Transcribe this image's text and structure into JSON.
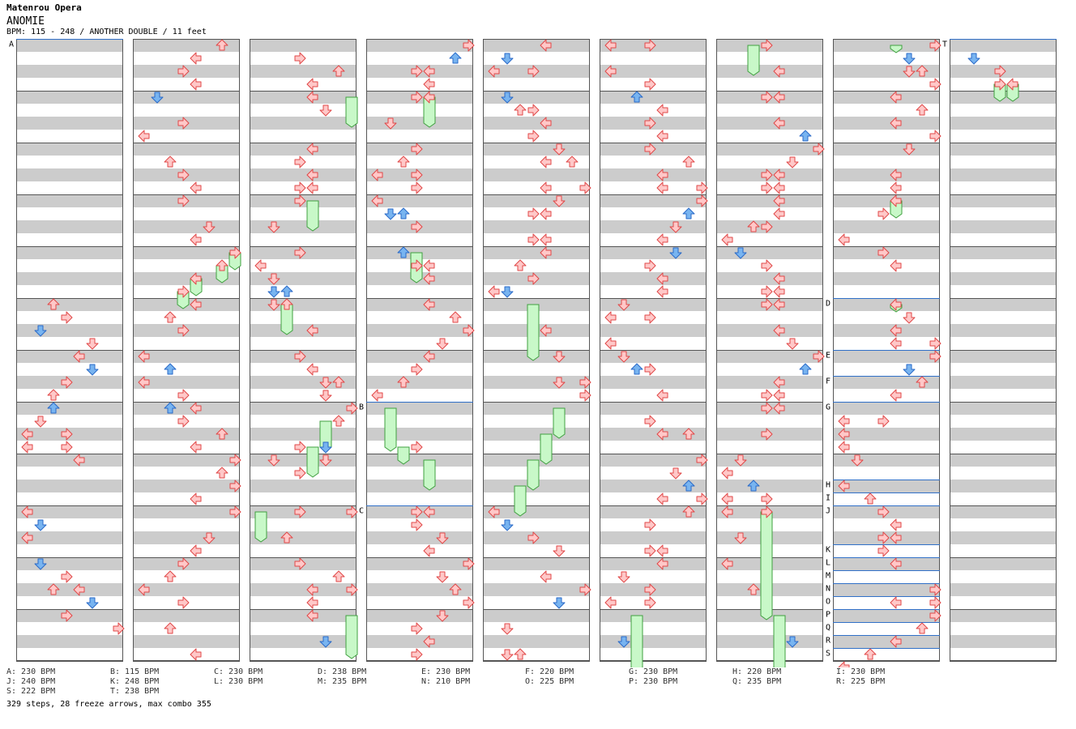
{
  "artist": "Matenrou Opera",
  "title": "ANOMIE",
  "meta": "BPM: 115 - 248 / ANOTHER DOUBLE / 11 feet",
  "colors": {
    "stripe": "#cccccc",
    "border": "#555555",
    "red_arrow": "#ffc8c8",
    "red_stroke": "#e04848",
    "blue_arrow": "#78b4f0",
    "blue_stroke": "#2a6ac8",
    "freeze_fill": "#c8f8c8",
    "freeze_stroke": "#40a040",
    "marker_line": "#3070c8"
  },
  "markers": [
    {
      "label": "A",
      "column": 0,
      "row": 0
    },
    {
      "label": "B",
      "column": 3,
      "row": 28
    },
    {
      "label": "C",
      "column": 3,
      "row": 36
    },
    {
      "label": "D",
      "column": 7,
      "row": 20
    },
    {
      "label": "E",
      "column": 7,
      "row": 24
    },
    {
      "label": "F",
      "column": 7,
      "row": 26
    },
    {
      "label": "G",
      "column": 7,
      "row": 28
    },
    {
      "label": "H",
      "column": 7,
      "row": 34
    },
    {
      "label": "I",
      "column": 7,
      "row": 35
    },
    {
      "label": "J",
      "column": 7,
      "row": 36
    },
    {
      "label": "K",
      "column": 7,
      "row": 39
    },
    {
      "label": "L",
      "column": 7,
      "row": 40
    },
    {
      "label": "M",
      "column": 7,
      "row": 41
    },
    {
      "label": "N",
      "column": 7,
      "row": 42
    },
    {
      "label": "O",
      "column": 7,
      "row": 43
    },
    {
      "label": "P",
      "column": 7,
      "row": 44
    },
    {
      "label": "Q",
      "column": 7,
      "row": 45
    },
    {
      "label": "R",
      "column": 7,
      "row": 46
    },
    {
      "label": "S",
      "column": 7,
      "row": 47
    },
    {
      "label": "T",
      "column": 8,
      "row": 0
    }
  ],
  "bpm_legend": [
    [
      "A: 230 BPM",
      "B: 115 BPM",
      "C: 230 BPM",
      "D: 238 BPM",
      "E: 230 BPM",
      "F: 220 BPM",
      "G: 230 BPM",
      "H: 220 BPM",
      "I: 230 BPM"
    ],
    [
      "J: 240 BPM",
      "K: 248 BPM",
      "L: 230 BPM",
      "M: 235 BPM",
      "N: 210 BPM",
      "O: 225 BPM",
      "P: 230 BPM",
      "Q: 235 BPM",
      "R: 225 BPM"
    ],
    [
      "S: 222 BPM",
      "T: 238 BPM"
    ]
  ],
  "summary": "329 steps, 28 freeze arrows, max combo 355",
  "arrows": [
    [
      0,
      2,
      20
    ],
    [
      0,
      3,
      21
    ],
    [
      0,
      1,
      22
    ],
    [
      0,
      5,
      23
    ],
    [
      0,
      4,
      24
    ],
    [
      0,
      5,
      25
    ],
    [
      0,
      3,
      26
    ],
    [
      0,
      2,
      27
    ],
    [
      0,
      2,
      28
    ],
    [
      0,
      1,
      29
    ],
    [
      0,
      0,
      30
    ],
    [
      0,
      3,
      30
    ],
    [
      0,
      0,
      31
    ],
    [
      0,
      3,
      31
    ],
    [
      0,
      4,
      32
    ],
    [
      0,
      0,
      36
    ],
    [
      0,
      1,
      37
    ],
    [
      0,
      0,
      38
    ],
    [
      0,
      1,
      40
    ],
    [
      0,
      3,
      41
    ],
    [
      0,
      2,
      42
    ],
    [
      0,
      4,
      42
    ],
    [
      0,
      5,
      43
    ],
    [
      0,
      3,
      44
    ],
    [
      0,
      7,
      45
    ],
    [
      1,
      6,
      0
    ],
    [
      1,
      4,
      1
    ],
    [
      1,
      3,
      2
    ],
    [
      1,
      4,
      3
    ],
    [
      1,
      1,
      4
    ],
    [
      1,
      3,
      6
    ],
    [
      1,
      0,
      7
    ],
    [
      1,
      2,
      9
    ],
    [
      1,
      3,
      10
    ],
    [
      1,
      4,
      11
    ],
    [
      1,
      3,
      12
    ],
    [
      1,
      5,
      14
    ],
    [
      1,
      4,
      15
    ],
    [
      1,
      7,
      16
    ],
    [
      1,
      6,
      17
    ],
    [
      1,
      4,
      18
    ],
    [
      1,
      3,
      19
    ],
    [
      1,
      4,
      20
    ],
    [
      1,
      2,
      21
    ],
    [
      1,
      3,
      22
    ],
    [
      1,
      0,
      24
    ],
    [
      1,
      2,
      25
    ],
    [
      1,
      0,
      26
    ],
    [
      1,
      3,
      27
    ],
    [
      1,
      2,
      28
    ],
    [
      1,
      4,
      28
    ],
    [
      1,
      3,
      29
    ],
    [
      1,
      6,
      30
    ],
    [
      1,
      4,
      31
    ],
    [
      1,
      7,
      32
    ],
    [
      1,
      6,
      33
    ],
    [
      1,
      7,
      34
    ],
    [
      1,
      4,
      35
    ],
    [
      1,
      7,
      36
    ],
    [
      1,
      5,
      38
    ],
    [
      1,
      4,
      39
    ],
    [
      1,
      3,
      40
    ],
    [
      1,
      2,
      41
    ],
    [
      1,
      0,
      42
    ],
    [
      1,
      3,
      43
    ],
    [
      1,
      2,
      45
    ],
    [
      1,
      4,
      47
    ],
    [
      2,
      3,
      1
    ],
    [
      2,
      6,
      2
    ],
    [
      2,
      4,
      3
    ],
    [
      2,
      4,
      4
    ],
    [
      2,
      5,
      5
    ],
    [
      2,
      4,
      8
    ],
    [
      2,
      3,
      9
    ],
    [
      2,
      4,
      10
    ],
    [
      2,
      3,
      11
    ],
    [
      2,
      4,
      11
    ],
    [
      2,
      3,
      12
    ],
    [
      2,
      1,
      14
    ],
    [
      2,
      3,
      16
    ],
    [
      2,
      0,
      17
    ],
    [
      2,
      1,
      18
    ],
    [
      2,
      2,
      19
    ],
    [
      2,
      1,
      19
    ],
    [
      2,
      1,
      20
    ],
    [
      2,
      2,
      20
    ],
    [
      2,
      4,
      22
    ],
    [
      2,
      3,
      24
    ],
    [
      2,
      4,
      25
    ],
    [
      2,
      5,
      26
    ],
    [
      2,
      6,
      26
    ],
    [
      2,
      5,
      27
    ],
    [
      2,
      7,
      28
    ],
    [
      2,
      6,
      29
    ],
    [
      2,
      3,
      31
    ],
    [
      2,
      5,
      31
    ],
    [
      2,
      1,
      32
    ],
    [
      2,
      5,
      32
    ],
    [
      2,
      3,
      33
    ],
    [
      2,
      7,
      36
    ],
    [
      2,
      3,
      36
    ],
    [
      2,
      2,
      38
    ],
    [
      2,
      3,
      40
    ],
    [
      2,
      6,
      41
    ],
    [
      2,
      4,
      42
    ],
    [
      2,
      7,
      42
    ],
    [
      2,
      4,
      43
    ],
    [
      2,
      4,
      44
    ],
    [
      2,
      5,
      46
    ],
    [
      3,
      7,
      0
    ],
    [
      3,
      6,
      1
    ],
    [
      3,
      3,
      2
    ],
    [
      3,
      4,
      2
    ],
    [
      3,
      4,
      3
    ],
    [
      3,
      3,
      4
    ],
    [
      3,
      4,
      4
    ],
    [
      3,
      1,
      6
    ],
    [
      3,
      3,
      8
    ],
    [
      3,
      2,
      9
    ],
    [
      3,
      0,
      10
    ],
    [
      3,
      3,
      10
    ],
    [
      3,
      3,
      11
    ],
    [
      3,
      0,
      12
    ],
    [
      3,
      1,
      13
    ],
    [
      3,
      2,
      13
    ],
    [
      3,
      3,
      14
    ],
    [
      3,
      2,
      16
    ],
    [
      3,
      3,
      17
    ],
    [
      3,
      4,
      17
    ],
    [
      3,
      4,
      18
    ],
    [
      3,
      4,
      20
    ],
    [
      3,
      6,
      21
    ],
    [
      3,
      7,
      22
    ],
    [
      3,
      5,
      23
    ],
    [
      3,
      4,
      24
    ],
    [
      3,
      3,
      25
    ],
    [
      3,
      2,
      26
    ],
    [
      3,
      0,
      27
    ],
    [
      3,
      3,
      31
    ],
    [
      3,
      3,
      36
    ],
    [
      3,
      4,
      36
    ],
    [
      3,
      3,
      37
    ],
    [
      3,
      5,
      38
    ],
    [
      3,
      4,
      39
    ],
    [
      3,
      7,
      40
    ],
    [
      3,
      5,
      41
    ],
    [
      3,
      6,
      42
    ],
    [
      3,
      7,
      43
    ],
    [
      3,
      5,
      44
    ],
    [
      3,
      3,
      45
    ],
    [
      3,
      4,
      46
    ],
    [
      3,
      3,
      47
    ],
    [
      4,
      4,
      0
    ],
    [
      4,
      1,
      1
    ],
    [
      4,
      0,
      2
    ],
    [
      4,
      3,
      2
    ],
    [
      4,
      1,
      4
    ],
    [
      4,
      2,
      5
    ],
    [
      4,
      3,
      5
    ],
    [
      4,
      4,
      6
    ],
    [
      4,
      3,
      7
    ],
    [
      4,
      5,
      8
    ],
    [
      4,
      4,
      9
    ],
    [
      4,
      6,
      9
    ],
    [
      4,
      7,
      11
    ],
    [
      4,
      4,
      11
    ],
    [
      4,
      5,
      12
    ],
    [
      4,
      4,
      13
    ],
    [
      4,
      3,
      13
    ],
    [
      4,
      4,
      15
    ],
    [
      4,
      3,
      15
    ],
    [
      4,
      4,
      16
    ],
    [
      4,
      2,
      17
    ],
    [
      4,
      3,
      18
    ],
    [
      4,
      0,
      19
    ],
    [
      4,
      1,
      19
    ],
    [
      4,
      4,
      22
    ],
    [
      4,
      5,
      24
    ],
    [
      4,
      5,
      26
    ],
    [
      4,
      7,
      26
    ],
    [
      4,
      7,
      27
    ],
    [
      4,
      0,
      36
    ],
    [
      4,
      1,
      37
    ],
    [
      4,
      3,
      38
    ],
    [
      4,
      5,
      39
    ],
    [
      4,
      4,
      41
    ],
    [
      4,
      7,
      42
    ],
    [
      4,
      5,
      43
    ],
    [
      4,
      1,
      45
    ],
    [
      4,
      1,
      47
    ],
    [
      4,
      2,
      47
    ],
    [
      5,
      0,
      0
    ],
    [
      5,
      3,
      0
    ],
    [
      5,
      0,
      2
    ],
    [
      5,
      3,
      3
    ],
    [
      5,
      2,
      4
    ],
    [
      5,
      4,
      5
    ],
    [
      5,
      3,
      6
    ],
    [
      5,
      4,
      7
    ],
    [
      5,
      3,
      8
    ],
    [
      5,
      6,
      9
    ],
    [
      5,
      4,
      10
    ],
    [
      5,
      7,
      11
    ],
    [
      5,
      4,
      11
    ],
    [
      5,
      7,
      12
    ],
    [
      5,
      6,
      13
    ],
    [
      5,
      5,
      14
    ],
    [
      5,
      4,
      15
    ],
    [
      5,
      5,
      16
    ],
    [
      5,
      3,
      17
    ],
    [
      5,
      4,
      18
    ],
    [
      5,
      4,
      19
    ],
    [
      5,
      1,
      20
    ],
    [
      5,
      0,
      21
    ],
    [
      5,
      3,
      21
    ],
    [
      5,
      0,
      23
    ],
    [
      5,
      1,
      24
    ],
    [
      5,
      2,
      25
    ],
    [
      5,
      3,
      25
    ],
    [
      5,
      4,
      27
    ],
    [
      5,
      3,
      29
    ],
    [
      5,
      4,
      30
    ],
    [
      5,
      6,
      30
    ],
    [
      5,
      7,
      32
    ],
    [
      5,
      5,
      33
    ],
    [
      5,
      6,
      34
    ],
    [
      5,
      4,
      35
    ],
    [
      5,
      7,
      35
    ],
    [
      5,
      6,
      36
    ],
    [
      5,
      3,
      37
    ],
    [
      5,
      4,
      39
    ],
    [
      5,
      3,
      39
    ],
    [
      5,
      4,
      40
    ],
    [
      5,
      1,
      41
    ],
    [
      5,
      3,
      42
    ],
    [
      5,
      0,
      43
    ],
    [
      5,
      3,
      43
    ],
    [
      5,
      1,
      46
    ],
    [
      6,
      3,
      0
    ],
    [
      6,
      4,
      2
    ],
    [
      6,
      3,
      4
    ],
    [
      6,
      4,
      4
    ],
    [
      6,
      4,
      6
    ],
    [
      6,
      6,
      7
    ],
    [
      6,
      7,
      8
    ],
    [
      6,
      5,
      9
    ],
    [
      6,
      3,
      10
    ],
    [
      6,
      4,
      10
    ],
    [
      6,
      3,
      11
    ],
    [
      6,
      4,
      11
    ],
    [
      6,
      4,
      12
    ],
    [
      6,
      4,
      13
    ],
    [
      6,
      2,
      14
    ],
    [
      6,
      3,
      14
    ],
    [
      6,
      0,
      15
    ],
    [
      6,
      1,
      16
    ],
    [
      6,
      3,
      17
    ],
    [
      6,
      4,
      18
    ],
    [
      6,
      3,
      19
    ],
    [
      6,
      4,
      19
    ],
    [
      6,
      3,
      20
    ],
    [
      6,
      4,
      20
    ],
    [
      6,
      4,
      22
    ],
    [
      6,
      5,
      23
    ],
    [
      6,
      7,
      24
    ],
    [
      6,
      6,
      25
    ],
    [
      6,
      4,
      26
    ],
    [
      6,
      3,
      27
    ],
    [
      6,
      4,
      27
    ],
    [
      6,
      3,
      28
    ],
    [
      6,
      4,
      28
    ],
    [
      6,
      3,
      30
    ],
    [
      6,
      1,
      32
    ],
    [
      6,
      0,
      33
    ],
    [
      6,
      2,
      34
    ],
    [
      6,
      0,
      35
    ],
    [
      6,
      3,
      35
    ],
    [
      6,
      0,
      36
    ],
    [
      6,
      3,
      36
    ],
    [
      6,
      1,
      38
    ],
    [
      6,
      0,
      40
    ],
    [
      6,
      2,
      42
    ],
    [
      6,
      5,
      46
    ],
    [
      7,
      7,
      0
    ],
    [
      7,
      5,
      1
    ],
    [
      7,
      5,
      2
    ],
    [
      7,
      6,
      2
    ],
    [
      7,
      7,
      3
    ],
    [
      7,
      4,
      4
    ],
    [
      7,
      6,
      5
    ],
    [
      7,
      4,
      6
    ],
    [
      7,
      7,
      7
    ],
    [
      7,
      5,
      8
    ],
    [
      7,
      4,
      10
    ],
    [
      7,
      4,
      11
    ],
    [
      7,
      4,
      12
    ],
    [
      7,
      3,
      13
    ],
    [
      7,
      0,
      15
    ],
    [
      7,
      3,
      16
    ],
    [
      7,
      4,
      17
    ],
    [
      7,
      4,
      20
    ],
    [
      7,
      5,
      21
    ],
    [
      7,
      4,
      22
    ],
    [
      7,
      4,
      23
    ],
    [
      7,
      7,
      23
    ],
    [
      7,
      7,
      24
    ],
    [
      7,
      5,
      25
    ],
    [
      7,
      6,
      26
    ],
    [
      7,
      4,
      27
    ],
    [
      7,
      0,
      29
    ],
    [
      7,
      3,
      29
    ],
    [
      7,
      0,
      30
    ],
    [
      7,
      0,
      31
    ],
    [
      7,
      1,
      32
    ],
    [
      7,
      0,
      34
    ],
    [
      7,
      2,
      35
    ],
    [
      7,
      3,
      36
    ],
    [
      7,
      4,
      37
    ],
    [
      7,
      3,
      38
    ],
    [
      7,
      4,
      38
    ],
    [
      7,
      3,
      39
    ],
    [
      7,
      4,
      40
    ],
    [
      7,
      7,
      42
    ],
    [
      7,
      4,
      43
    ],
    [
      7,
      7,
      43
    ],
    [
      7,
      7,
      44
    ],
    [
      7,
      6,
      45
    ],
    [
      7,
      4,
      46
    ],
    [
      7,
      2,
      47
    ],
    [
      7,
      0,
      48
    ],
    [
      8,
      1,
      1
    ],
    [
      8,
      3,
      2
    ],
    [
      8,
      3,
      3
    ],
    [
      8,
      4,
      3
    ]
  ],
  "freezes": [
    [
      1,
      7,
      16,
      17
    ],
    [
      1,
      6,
      17,
      18
    ],
    [
      1,
      4,
      18,
      19
    ],
    [
      1,
      3,
      19,
      20
    ],
    [
      2,
      7,
      4,
      6
    ],
    [
      2,
      4,
      12,
      14
    ],
    [
      2,
      2,
      20,
      22
    ],
    [
      2,
      5,
      29,
      31
    ],
    [
      2,
      4,
      31,
      33
    ],
    [
      2,
      0,
      36,
      38
    ],
    [
      2,
      7,
      44,
      47
    ],
    [
      3,
      4,
      4,
      6
    ],
    [
      3,
      3,
      16,
      18
    ],
    [
      3,
      1,
      28,
      31
    ],
    [
      3,
      2,
      31,
      32
    ],
    [
      3,
      4,
      32,
      34
    ],
    [
      4,
      3,
      20,
      24
    ],
    [
      4,
      5,
      28,
      30
    ],
    [
      4,
      4,
      30,
      32
    ],
    [
      4,
      3,
      32,
      34
    ],
    [
      4,
      2,
      34,
      36
    ],
    [
      5,
      2,
      44,
      48
    ],
    [
      6,
      2,
      0,
      2
    ],
    [
      6,
      3,
      36,
      44
    ],
    [
      6,
      4,
      44,
      48
    ],
    [
      7,
      4,
      0,
      0
    ],
    [
      7,
      4,
      12,
      13
    ],
    [
      7,
      4,
      20,
      20
    ],
    [
      8,
      3,
      3,
      4
    ],
    [
      8,
      4,
      3,
      4
    ]
  ]
}
